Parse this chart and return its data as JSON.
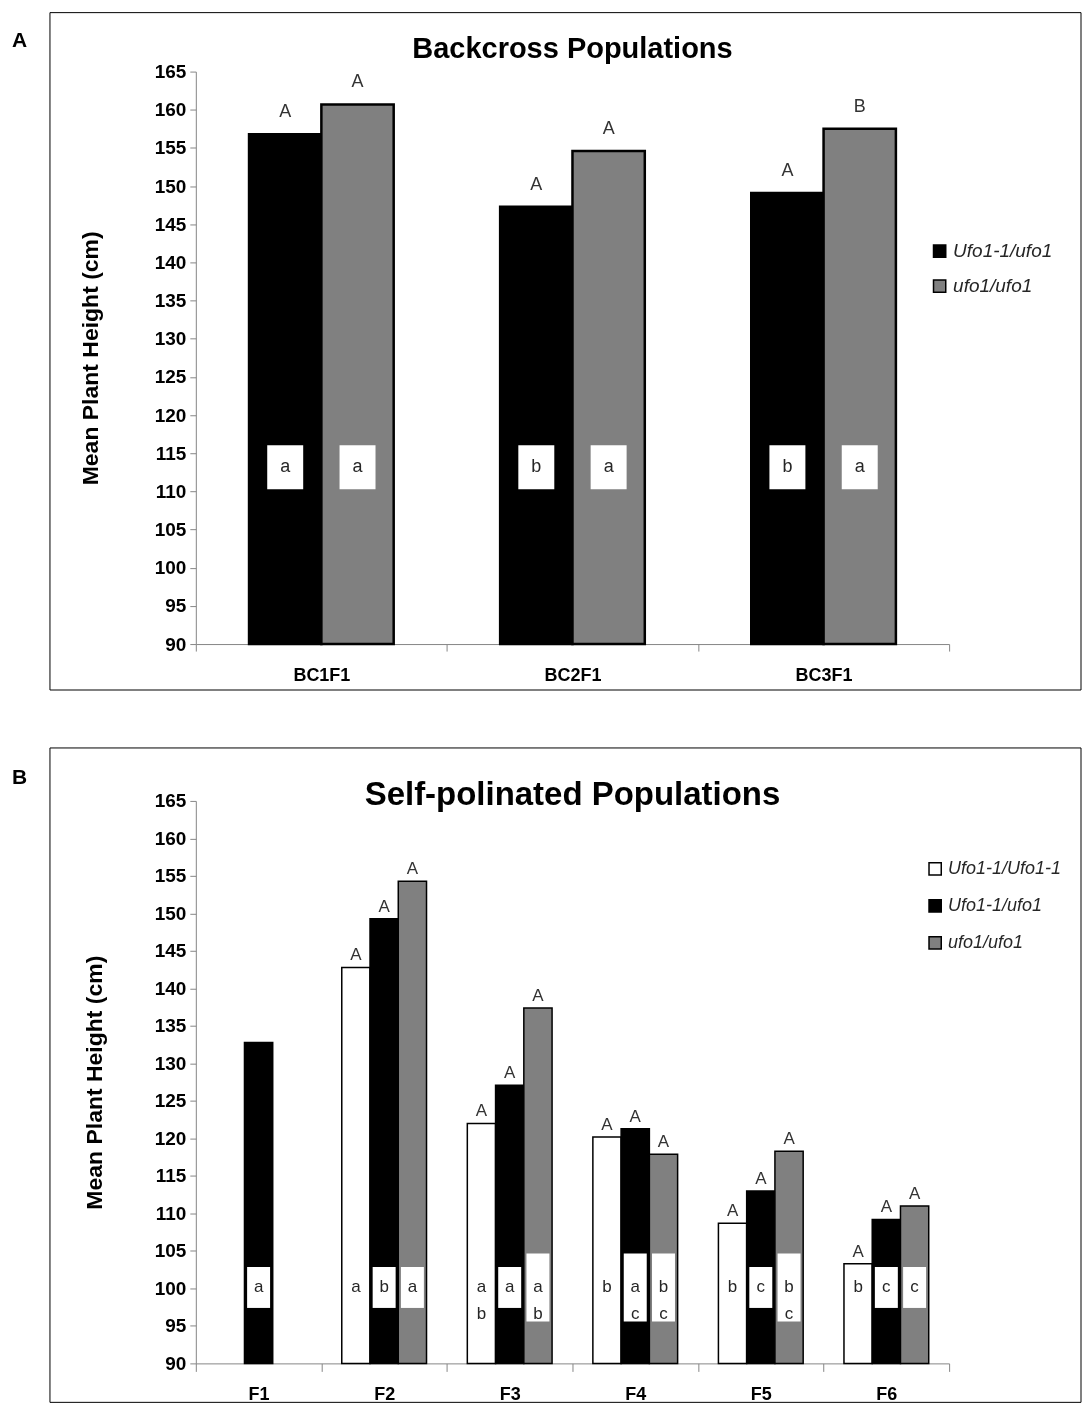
{
  "chart_data": [
    {
      "type": "bar",
      "title": "Backcross Populations",
      "ylabel": "Mean Plant Height (cm)",
      "categories": [
        "BC1F1",
        "BC2F1",
        "BC3F1"
      ],
      "series": [
        {
          "name": "Ufo1-1/ufo1",
          "color": "#000000",
          "values": [
            156.8,
            147.3,
            149.1
          ],
          "value_labels": [
            "A",
            "A",
            "A"
          ]
        },
        {
          "name": "ufo1/ufo1",
          "color": "#808080",
          "values": [
            160.7,
            154.6,
            157.5
          ],
          "value_labels": [
            "A",
            "A",
            "B"
          ]
        }
      ],
      "ylim": [
        90,
        165
      ],
      "yticks": [
        90,
        95,
        100,
        105,
        110,
        115,
        120,
        125,
        130,
        135,
        140,
        145,
        150,
        155,
        160,
        165
      ],
      "legend": "right",
      "annotations": [
        "A",
        "a",
        "a",
        "b",
        "a",
        "b",
        "a"
      ]
    },
    {
      "type": "bar",
      "title": "Self-polinated Populations",
      "ylabel": "Mean Plant Height (cm)",
      "categories": [
        "F1",
        "F2",
        "F3",
        "F4",
        "F5",
        "F6"
      ],
      "series": [
        {
          "name": "Ufo1-1/Ufo1-1",
          "color": "#ffffff",
          "values": [
            null,
            142.8,
            122.0,
            120.2,
            108.7,
            103.3
          ],
          "value_labels": [
            null,
            "A",
            "A",
            "A",
            "A",
            "A"
          ]
        },
        {
          "name": "Ufo1-1/ufo1",
          "color": "#000000",
          "values": [
            132.8,
            149.3,
            127.1,
            121.3,
            113.0,
            109.2
          ],
          "value_labels": [
            null,
            "A",
            "A",
            "A",
            "A",
            "A"
          ]
        },
        {
          "name": "ufo1/ufo1",
          "color": "#808080",
          "values": [
            null,
            154.3,
            137.4,
            117.9,
            118.3,
            111.0
          ],
          "value_labels": [
            null,
            "A",
            "A",
            "A",
            "A",
            "A"
          ]
        }
      ],
      "ylim": [
        90,
        165
      ],
      "yticks": [
        90,
        95,
        100,
        105,
        110,
        115,
        120,
        125,
        130,
        135,
        140,
        145,
        150,
        155,
        160,
        165
      ],
      "legend": "top right",
      "annotations": [
        "B",
        "a",
        "a",
        "b",
        "a",
        "a\nb",
        "a",
        "a\nb",
        "b",
        "a\nc",
        "b\nc",
        "b",
        "c",
        "b\nc",
        "b",
        "c",
        "c"
      ]
    }
  ]
}
